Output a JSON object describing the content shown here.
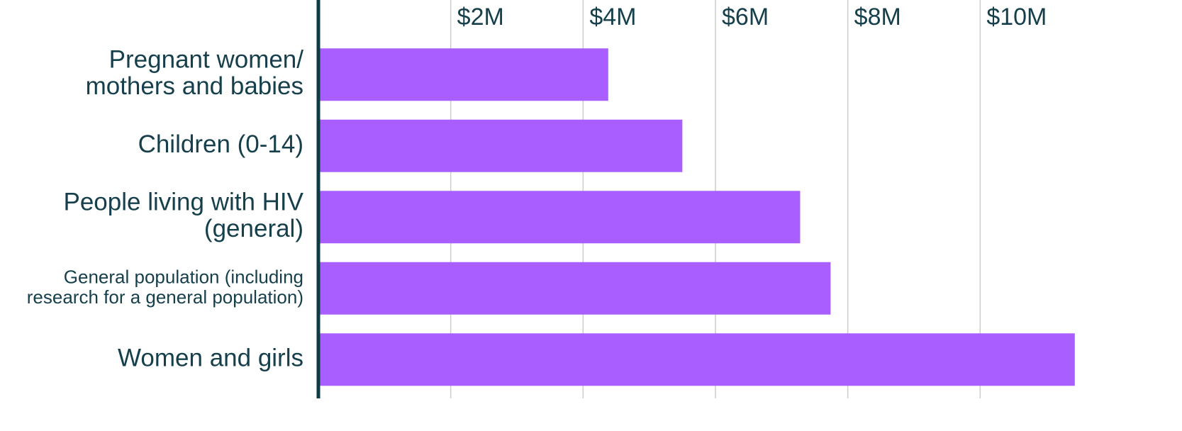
{
  "chart_data": {
    "type": "bar",
    "orientation": "horizontal",
    "categories": [
      "Pregnant women/\nmothers and babies",
      "Children (0-14)",
      "People living with HIV\n(general)",
      "General population (including\nresearch for a general population)",
      "Women and girls"
    ],
    "values": [
      4380000,
      5500000,
      7280000,
      7740000,
      11430000
    ],
    "color": "#a95eff",
    "xlim": [
      0,
      12000000
    ],
    "xticks": [
      {
        "value": 2000000,
        "label": "$2M"
      },
      {
        "value": 4000000,
        "label": "$4M"
      },
      {
        "value": 6000000,
        "label": "$6M"
      },
      {
        "value": 8000000,
        "label": "$8M"
      },
      {
        "value": 10000000,
        "label": "$10M"
      }
    ],
    "grid": true
  }
}
